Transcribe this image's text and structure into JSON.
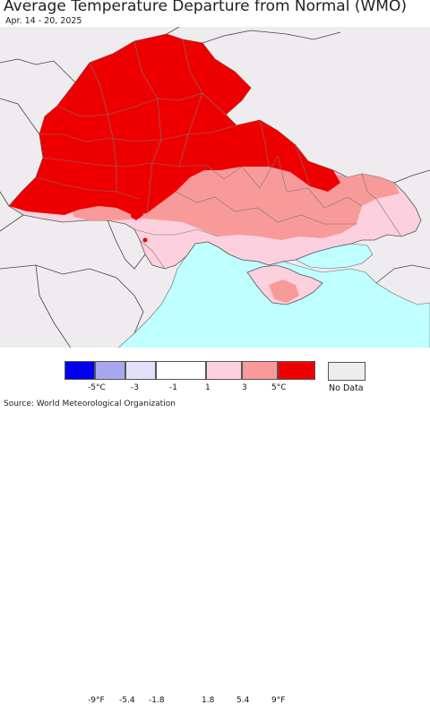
{
  "title": "Average Temperature Departure from Normal (WMO)",
  "subtitle": "Apr. 14 - 20, 2025",
  "legend": {
    "fahrenheit_ticks": [
      "-9°F",
      "-5.4",
      "-1.8",
      "1.8",
      "5.4",
      "9°F"
    ],
    "celsius_ticks": [
      "-5°C",
      "-3",
      "-1",
      "1",
      "3",
      "5°C"
    ],
    "bins": [
      {
        "color": "#0000ee"
      },
      {
        "color": "#a7a7f0"
      },
      {
        "color": "#e0e0f8"
      },
      {
        "color": "#ffffff"
      },
      {
        "color": "#fcd0de"
      },
      {
        "color": "#f99a9a"
      },
      {
        "color": "#ee0000"
      }
    ],
    "no_data_label": "No Data",
    "no_data_color": "#efecef"
  },
  "colors": {
    "sea": "#bfffff",
    "land_outside": "#efecef",
    "very_warm": "#ee0000",
    "warm": "#f99a9a",
    "slightly_warm": "#fcd0de"
  },
  "source": "Source: World Meteorological Organization"
}
